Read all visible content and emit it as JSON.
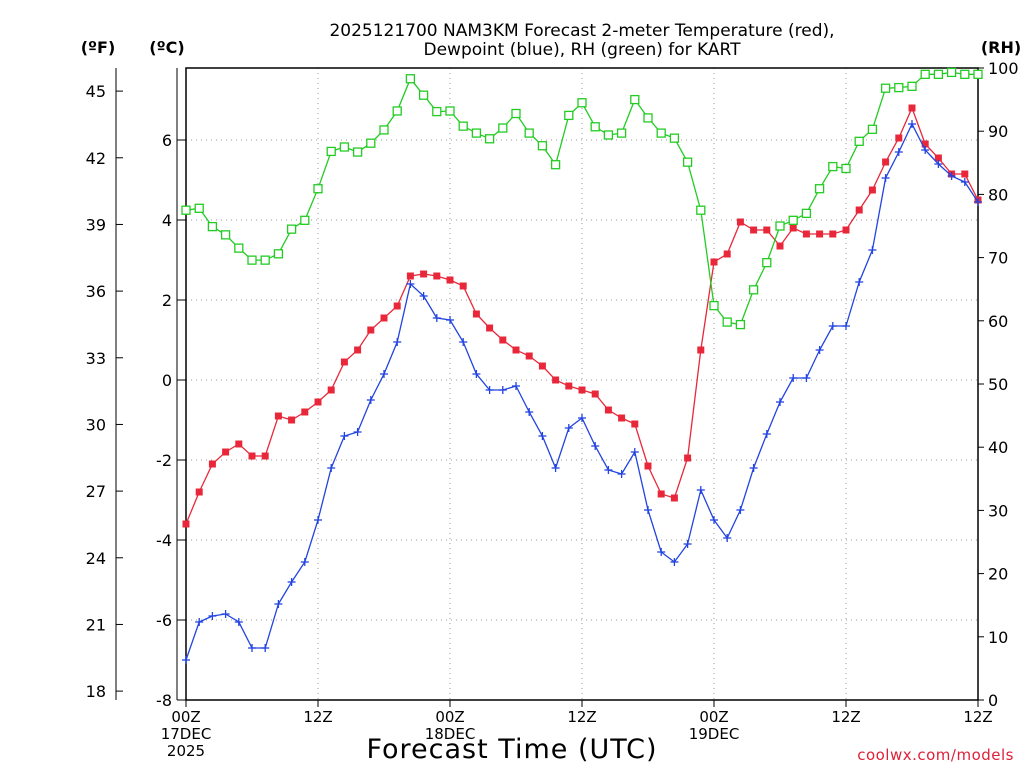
{
  "chart_data": {
    "type": "line",
    "title_line1": "2025121700 NAM3KM Forecast 2-meter Temperature (red),",
    "title_line2": "Dewpoint (blue), RH (green) for KART",
    "xlabel": "Forecast Time (UTC)",
    "credit": "coolwx.com/models",
    "left_unit_f": "(ºF)",
    "left_unit_c": "(ºC)",
    "right_unit": "(RH)",
    "x_range_hours": [
      0,
      36
    ],
    "x_ticks": [
      {
        "h": 0,
        "lines": [
          "00Z",
          "17DEC",
          "2025"
        ]
      },
      {
        "h": 6,
        "lines": [
          "12Z"
        ]
      },
      {
        "h": 12,
        "lines": [
          "00Z",
          "18DEC"
        ]
      },
      {
        "h": 18,
        "lines": [
          "12Z"
        ]
      },
      {
        "h": 24,
        "lines": [
          "00Z",
          "19DEC"
        ]
      },
      {
        "h": 30,
        "lines": [
          "12Z"
        ]
      }
    ],
    "c_range": [
      -8,
      7.8
    ],
    "c_ticks": [
      "-8",
      "-6",
      "-4",
      "-2",
      "0",
      "2",
      "4",
      "6"
    ],
    "f_ticks": [
      "18",
      "21",
      "24",
      "27",
      "30",
      "33",
      "36",
      "39",
      "42",
      "45"
    ],
    "rh_range": [
      0,
      100
    ],
    "rh_ticks": [
      "0",
      "10",
      "20",
      "30",
      "40",
      "50",
      "60",
      "70",
      "80",
      "90",
      "100"
    ],
    "series": [
      {
        "name": "2-meter Temperature",
        "axis": "C",
        "color": "#e8283a",
        "marker": "filled-square",
        "values": [
          -3.6,
          -2.8,
          -2.1,
          -1.8,
          -1.6,
          -1.9,
          -1.9,
          -0.9,
          -1.0,
          -0.8,
          -0.55,
          -0.25,
          0.45,
          0.75,
          1.25,
          1.55,
          1.85,
          2.6,
          2.65,
          2.6,
          2.5,
          2.35,
          1.65,
          1.3,
          1.0,
          0.75,
          0.6,
          0.35,
          0.0,
          -0.15,
          -0.25,
          -0.35,
          -0.75,
          -0.95,
          -1.1,
          -2.15,
          -2.85,
          -2.95,
          -1.95,
          0.75,
          2.95,
          3.15,
          3.95,
          3.75,
          3.75,
          3.35,
          3.8,
          3.65,
          3.65,
          3.65,
          3.75,
          4.25,
          4.75,
          5.45,
          6.05,
          6.8,
          5.9,
          5.55,
          5.15,
          5.15,
          4.5
        ]
      },
      {
        "name": "Dewpoint",
        "axis": "C",
        "color": "#2244e0",
        "marker": "plus",
        "values": [
          -7.0,
          -6.05,
          -5.9,
          -5.85,
          -6.05,
          -6.7,
          -6.7,
          -5.6,
          -5.05,
          -4.55,
          -3.5,
          -2.2,
          -1.4,
          -1.3,
          -0.5,
          0.15,
          0.95,
          2.4,
          2.1,
          1.55,
          1.5,
          0.95,
          0.15,
          -0.25,
          -0.25,
          -0.15,
          -0.8,
          -1.4,
          -2.2,
          -1.2,
          -0.95,
          -1.65,
          -2.25,
          -2.35,
          -1.8,
          -3.25,
          -4.3,
          -4.55,
          -4.1,
          -2.75,
          -3.5,
          -3.95,
          -3.25,
          -2.2,
          -1.35,
          -0.55,
          0.05,
          0.05,
          0.75,
          1.35,
          1.35,
          2.45,
          3.25,
          5.05,
          5.7,
          6.4,
          5.75,
          5.4,
          5.1,
          4.95,
          4.45
        ]
      },
      {
        "name": "RH",
        "axis": "RH",
        "color": "#22cc22",
        "marker": "open-square",
        "values": [
          77.5,
          77.8,
          74.9,
          73.6,
          71.5,
          69.6,
          69.6,
          70.6,
          74.5,
          75.9,
          80.9,
          86.8,
          87.5,
          86.7,
          88.1,
          90.2,
          93.2,
          98.3,
          95.7,
          93.1,
          93.2,
          90.8,
          89.7,
          88.8,
          90.5,
          92.8,
          89.7,
          87.7,
          84.7,
          92.5,
          94.5,
          90.7,
          89.4,
          89.7,
          95.0,
          92.1,
          89.7,
          88.9,
          85.1,
          77.5,
          62.4,
          59.8,
          59.4,
          64.9,
          69.2,
          75.0,
          75.9,
          77.0,
          80.9,
          84.4,
          84.1,
          88.4,
          90.3,
          96.8,
          96.9,
          97.1,
          99.0,
          99.0,
          99.3,
          99.0,
          99.0
        ]
      }
    ]
  },
  "colors": {
    "temperature": "#e8283a",
    "dewpoint": "#2244e0",
    "rh": "#22cc22",
    "credit": "#e0203a"
  }
}
